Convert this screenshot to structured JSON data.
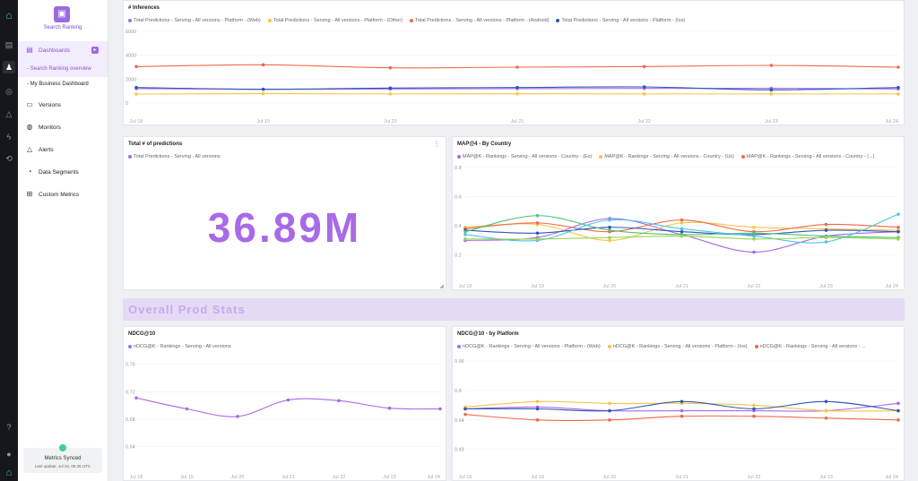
{
  "app": {
    "project_name": "Search Ranking",
    "status": {
      "text": "Metrics Synced",
      "last_update": "Last update: Jul 24, 06:35 UTC"
    }
  },
  "sidebar": {
    "dashboards_label": "Dashboards",
    "sub_items": [
      "- Search Ranking overview",
      "- My Business Dashboard"
    ],
    "items": [
      {
        "label": "Versions",
        "icon": "briefcase-icon"
      },
      {
        "label": "Monitors",
        "icon": "monitor-icon"
      },
      {
        "label": "Alerts",
        "icon": "alert-triangle-icon"
      },
      {
        "label": "Data Segments",
        "icon": "pie-chart-icon"
      },
      {
        "label": "Custom Metrics",
        "icon": "grid-icon"
      }
    ]
  },
  "panels": {
    "inferences": {
      "title": "# Inferences"
    },
    "total": {
      "title": "Total # of predictions",
      "legend": "Total Predictions - Serving - All versions",
      "value": "36.89M"
    },
    "map": {
      "title": "MAP@4 - By Country"
    },
    "ndcg": {
      "title": "NDCG@10"
    },
    "ndcg_platform": {
      "title": "NDCG@10 - by Platform"
    }
  },
  "banner": "Overall Prod Stats",
  "colors": {
    "accent": "#a86ae6",
    "purple": "#a86ae6",
    "yellow": "#f5c542",
    "orange": "#ef6a4a",
    "blue": "#2f55b8",
    "green": "#4cc27a",
    "cyan": "#4fc3e8",
    "lime": "#9bd44f"
  },
  "chart_data": [
    {
      "type": "line",
      "x": [
        "Jul 18",
        "Jul 19",
        "Jul 20",
        "Jul 21",
        "Jul 22",
        "Jul 23",
        "Jul 24"
      ],
      "ylim": [
        0,
        6000
      ],
      "yticks": [
        "6000",
        "4000",
        "2000",
        "0"
      ],
      "series": [
        {
          "name": "Total Predictions - Serving - All versions - Platform - (Web)",
          "color": "#a86ae6",
          "values": [
            1200,
            1150,
            1180,
            1200,
            1220,
            1230,
            1180
          ]
        },
        {
          "name": "Total Predictions - Serving - All versions - Platform - (Other)",
          "color": "#f5c542",
          "values": [
            750,
            780,
            760,
            770,
            760,
            760,
            760
          ]
        },
        {
          "name": "Total Predictions - Serving - All versions - Platform - (Android)",
          "color": "#ef6a4a",
          "values": [
            3050,
            3200,
            2950,
            3000,
            3050,
            3150,
            3000
          ]
        },
        {
          "name": "Total Predictions - Serving - All versions - Platform - (Ios)",
          "color": "#2f55b8",
          "values": [
            1300,
            1150,
            1250,
            1300,
            1350,
            1100,
            1300
          ]
        }
      ]
    },
    {
      "type": "line",
      "x": [
        "Jul 18",
        "Jul 19",
        "Jul 20",
        "Jul 21",
        "Jul 22",
        "Jul 23",
        "Jul 24"
      ],
      "ylim": [
        0.1,
        0.8
      ],
      "yticks": [
        "0.8",
        "0.6",
        "0.4",
        "0.2"
      ],
      "series": [
        {
          "name": "MAP@K - Rankings - Serving - All versions - Country - (Es)",
          "color": "#a86ae6",
          "values": [
            0.3,
            0.32,
            0.45,
            0.34,
            0.22,
            0.33,
            0.36
          ]
        },
        {
          "name": "MAP@K - Rankings - Serving - All versions - Country - (Us)",
          "color": "#f5c542",
          "values": [
            0.39,
            0.41,
            0.3,
            0.42,
            0.39,
            0.38,
            0.37
          ]
        },
        {
          "name": "MAP@K - Rankings - Serving - All versions - Country - (...)",
          "color": "#ef6a4a",
          "values": [
            0.38,
            0.42,
            0.36,
            0.44,
            0.36,
            0.41,
            0.39
          ]
        },
        {
          "name": "",
          "color": "#2f55b8",
          "values": [
            0.37,
            0.35,
            0.39,
            0.36,
            0.34,
            0.37,
            0.36
          ]
        },
        {
          "name": "",
          "color": "#4cc27a",
          "values": [
            0.36,
            0.47,
            0.37,
            0.34,
            0.35,
            0.33,
            0.32
          ]
        },
        {
          "name": "",
          "color": "#4fc3e8",
          "values": [
            0.34,
            0.3,
            0.44,
            0.38,
            0.33,
            0.29,
            0.48
          ]
        },
        {
          "name": "",
          "color": "#9bd44f",
          "values": [
            0.31,
            0.31,
            0.32,
            0.33,
            0.31,
            0.32,
            0.31
          ]
        }
      ]
    },
    {
      "type": "line",
      "x": [
        "Jul 18",
        "Jul 19",
        "Jul 20",
        "Jul 21",
        "Jul 22",
        "Jul 23",
        "Jul 24"
      ],
      "ylim": [
        0.62,
        0.77
      ],
      "yticks": [
        "0.76",
        "0.72",
        "0.68",
        "0.64"
      ],
      "series": [
        {
          "name": "nDCG@K - Rankings - Serving - All versions",
          "color": "#a86ae6",
          "values": [
            0.711,
            0.695,
            0.684,
            0.708,
            0.707,
            0.696,
            0.695
          ]
        }
      ]
    },
    {
      "type": "line",
      "x": [
        "Jul 18",
        "Jul 19",
        "Jul 20",
        "Jul 21",
        "Jul 22",
        "Jul 23",
        "Jul 24"
      ],
      "ylim": [
        0.42,
        0.98
      ],
      "yticks": [
        "0.96",
        "0.8",
        "0.64",
        "0.48"
      ],
      "series": [
        {
          "name": "nDCG@K - Rankings - Serving - All versions - Platform - (Web)",
          "color": "#a86ae6",
          "values": [
            0.7,
            0.71,
            0.69,
            0.69,
            0.69,
            0.69,
            0.73
          ]
        },
        {
          "name": "nDCG@K - Rankings - Serving - All versions - Platform - (Ios)",
          "color": "#f5c542",
          "values": [
            0.71,
            0.74,
            0.73,
            0.73,
            0.72,
            0.69,
            0.69
          ]
        },
        {
          "name": "nDCG@K - Rankings - Serving - All versions - ...",
          "color": "#ef6a4a",
          "values": [
            0.67,
            0.64,
            0.64,
            0.66,
            0.66,
            0.65,
            0.64
          ]
        },
        {
          "name": "",
          "color": "#2f55b8",
          "values": [
            0.7,
            0.7,
            0.69,
            0.74,
            0.7,
            0.74,
            0.69
          ]
        }
      ]
    }
  ]
}
